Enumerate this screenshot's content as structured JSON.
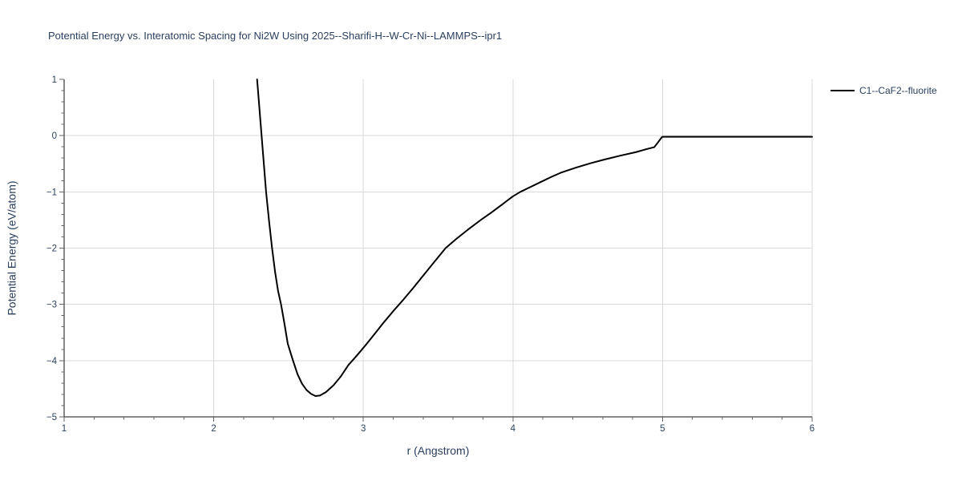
{
  "page": {
    "background": "#ffffff"
  },
  "colors": {
    "title_text": "#2a3f5f",
    "axis_title_text": "#2a3f5f",
    "tick_label_text": "#2a3f5f",
    "axis_line": "#111111",
    "tick_mark": "#666666",
    "gridline": "#d9d9d9",
    "series_line": "#000000",
    "background": "#ffffff"
  },
  "chart_data": {
    "type": "line",
    "title": "Potential Energy vs. Interatomic Spacing for Ni2W Using 2025--Sharifi-H--W-Cr-Ni--LAMMPS--ipr1",
    "xlabel": "r (Angstrom)",
    "ylabel": "Potential Energy (eV/atom)",
    "xlim": [
      1,
      6
    ],
    "ylim": [
      -5,
      1
    ],
    "x_major_ticks": [
      1,
      2,
      3,
      4,
      5,
      6
    ],
    "y_major_ticks": [
      1,
      0,
      -1,
      -2,
      -3,
      -4,
      -5
    ],
    "minor_tick_step": 0.2,
    "grid": {
      "show": true,
      "x_lines": [
        2,
        3,
        4,
        5,
        6
      ],
      "y_lines": [
        0,
        -1,
        -2,
        -3,
        -4
      ]
    },
    "legend": {
      "position": "top-right-outside",
      "entries": [
        {
          "label": "C1--CaF2--fluorite",
          "color": "#000000"
        }
      ]
    },
    "series": [
      {
        "name": "C1--CaF2--fluorite",
        "color": "#000000",
        "width": 2,
        "points": [
          [
            2.29,
            1.0
          ],
          [
            2.3,
            0.67
          ],
          [
            2.31,
            0.33
          ],
          [
            2.32,
            0.0
          ],
          [
            2.335,
            -0.5
          ],
          [
            2.35,
            -1.0
          ],
          [
            2.37,
            -1.52
          ],
          [
            2.39,
            -2.0
          ],
          [
            2.41,
            -2.42
          ],
          [
            2.43,
            -2.76
          ],
          [
            2.45,
            -3.0
          ],
          [
            2.47,
            -3.3
          ],
          [
            2.495,
            -3.7
          ],
          [
            2.53,
            -4.0
          ],
          [
            2.56,
            -4.24
          ],
          [
            2.59,
            -4.41
          ],
          [
            2.62,
            -4.52
          ],
          [
            2.65,
            -4.59
          ],
          [
            2.68,
            -4.63
          ],
          [
            2.71,
            -4.62
          ],
          [
            2.75,
            -4.56
          ],
          [
            2.8,
            -4.44
          ],
          [
            2.85,
            -4.28
          ],
          [
            2.9,
            -4.08
          ],
          [
            2.96,
            -3.9
          ],
          [
            3.02,
            -3.71
          ],
          [
            3.08,
            -3.51
          ],
          [
            3.14,
            -3.31
          ],
          [
            3.2,
            -3.12
          ],
          [
            3.26,
            -2.94
          ],
          [
            3.33,
            -2.72
          ],
          [
            3.4,
            -2.49
          ],
          [
            3.47,
            -2.26
          ],
          [
            3.55,
            -2.0
          ],
          [
            3.62,
            -1.84
          ],
          [
            3.7,
            -1.67
          ],
          [
            3.78,
            -1.51
          ],
          [
            3.86,
            -1.36
          ],
          [
            3.93,
            -1.22
          ],
          [
            4.0,
            -1.08
          ],
          [
            4.05,
            -1.0
          ],
          [
            4.12,
            -0.91
          ],
          [
            4.19,
            -0.82
          ],
          [
            4.26,
            -0.73
          ],
          [
            4.32,
            -0.66
          ],
          [
            4.42,
            -0.57
          ],
          [
            4.52,
            -0.49
          ],
          [
            4.62,
            -0.42
          ],
          [
            4.72,
            -0.355
          ],
          [
            4.82,
            -0.295
          ],
          [
            4.9,
            -0.235
          ],
          [
            4.945,
            -0.205
          ],
          [
            4.97,
            -0.12
          ],
          [
            4.995,
            -0.03
          ],
          [
            5.0,
            -0.02
          ],
          [
            5.25,
            -0.02
          ],
          [
            5.5,
            -0.02
          ],
          [
            5.75,
            -0.02
          ],
          [
            6.0,
            -0.02
          ]
        ]
      }
    ]
  }
}
